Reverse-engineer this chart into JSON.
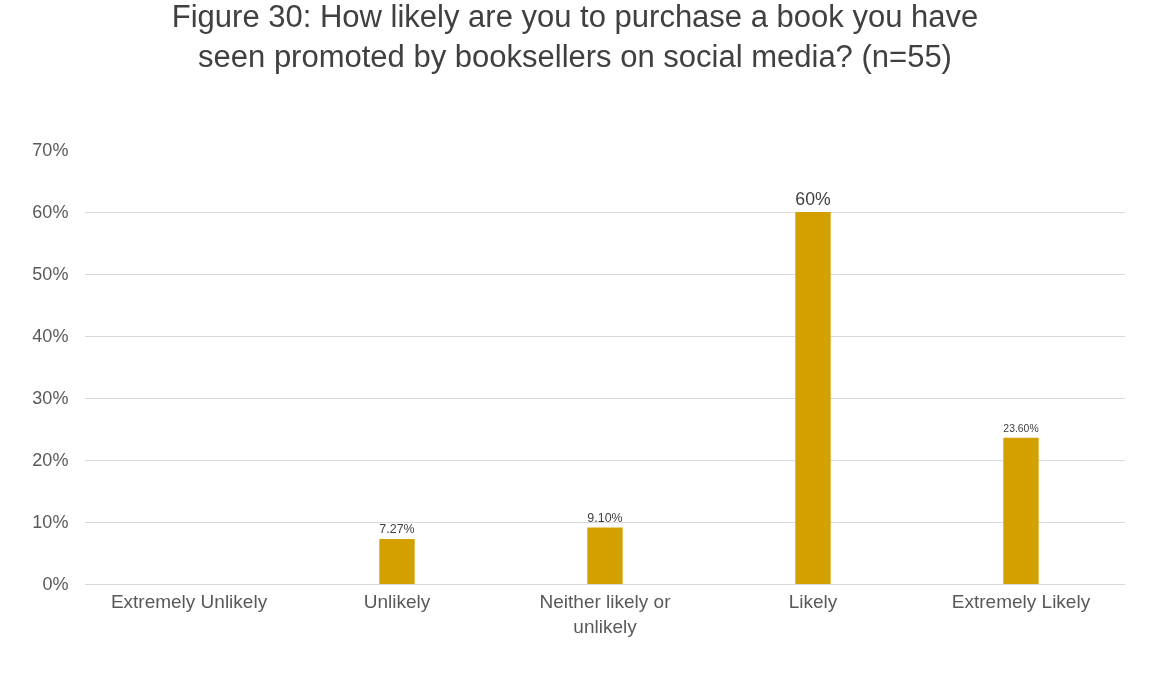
{
  "chart_data": {
    "type": "bar",
    "title": "Figure 30: How likely are you to purchase a book you have seen promoted by booksellers on social media? (n=55)",
    "categories": [
      "Extremely Unlikely",
      "Unlikely",
      "Neither likely or unlikely",
      "Likely",
      "Extremely Likely"
    ],
    "values": [
      0,
      7.27,
      9.1,
      60,
      23.6
    ],
    "value_labels": [
      null,
      "7.27%",
      "9.10%",
      "60%",
      "23.60%"
    ],
    "color": "#d4a000",
    "ylim": [
      0,
      70
    ],
    "yticks": [
      {
        "value": 0,
        "label": "0%"
      },
      {
        "value": 10,
        "label": "10%"
      },
      {
        "value": 20,
        "label": "20%"
      },
      {
        "value": 30,
        "label": "30%"
      },
      {
        "value": 40,
        "label": "40%"
      },
      {
        "value": 50,
        "label": "50%"
      },
      {
        "value": 60,
        "label": "60%"
      },
      {
        "value": 70,
        "label": "70%"
      }
    ],
    "grid": "y"
  }
}
